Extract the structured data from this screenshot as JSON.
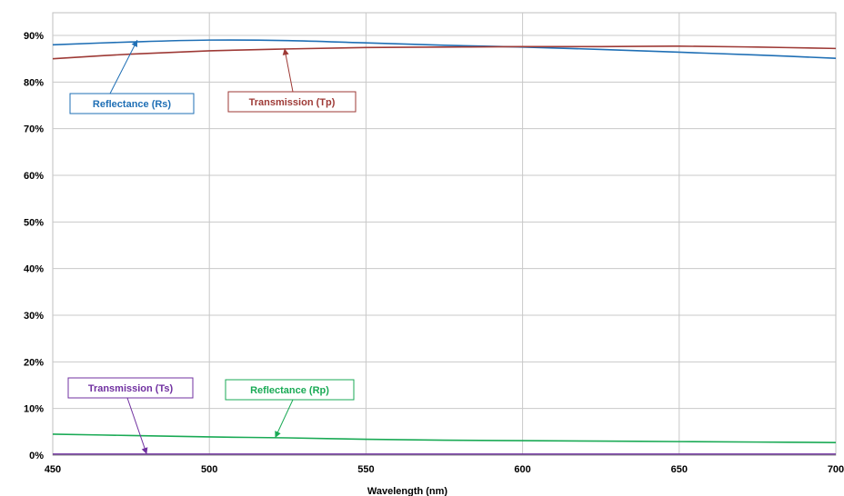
{
  "chart_data": {
    "type": "line",
    "title": "",
    "xlabel": "Wavelength (nm)",
    "ylabel": "",
    "xlim": [
      450,
      700
    ],
    "ylim": [
      0,
      95
    ],
    "grid": true,
    "x_ticks": [
      450,
      500,
      550,
      600,
      650,
      700
    ],
    "x_tick_labels": [
      "450",
      "500",
      "550",
      "600",
      "650",
      "700"
    ],
    "y_ticks": [
      0,
      10,
      20,
      30,
      40,
      50,
      60,
      70,
      80,
      90
    ],
    "y_tick_labels": [
      "0%",
      "10%",
      "20%",
      "30%",
      "40%",
      "50%",
      "60%",
      "70%",
      "80%",
      "90%"
    ],
    "x": [
      450,
      475,
      500,
      525,
      550,
      575,
      600,
      625,
      650,
      675,
      700
    ],
    "series": [
      {
        "name": "Reflectance (Rs)",
        "color": "#1f6fb5",
        "values": [
          88.0,
          88.6,
          89.0,
          88.9,
          88.4,
          87.9,
          87.5,
          87.0,
          86.4,
          85.8,
          85.1
        ]
      },
      {
        "name": "Transmission (Tp)",
        "color": "#9e3a36",
        "values": [
          85.0,
          86.0,
          86.7,
          87.1,
          87.4,
          87.5,
          87.6,
          87.6,
          87.7,
          87.5,
          87.2
        ]
      },
      {
        "name": "Reflectance (Rp)",
        "color": "#1aaa55",
        "values": [
          4.5,
          4.2,
          3.9,
          3.7,
          3.4,
          3.2,
          3.1,
          3.0,
          2.9,
          2.8,
          2.7
        ]
      },
      {
        "name": "Transmission (Ts)",
        "color": "#7030a0",
        "values": [
          0.2,
          0.2,
          0.2,
          0.2,
          0.2,
          0.2,
          0.2,
          0.2,
          0.2,
          0.2,
          0.2
        ]
      }
    ],
    "annotations": [
      {
        "text": "Reflectance (Rs)",
        "color": "#1f6fb5",
        "target": [
          477,
          89.0
        ]
      },
      {
        "text": "Transmission (Tp)",
        "color": "#9e3a36",
        "target": [
          524,
          87.2
        ]
      },
      {
        "text": "Transmission (Ts)",
        "color": "#7030a0",
        "target": [
          480,
          0.2
        ]
      },
      {
        "text": "Reflectance (Rp)",
        "color": "#1aaa55",
        "target": [
          521,
          3.7
        ]
      }
    ]
  }
}
